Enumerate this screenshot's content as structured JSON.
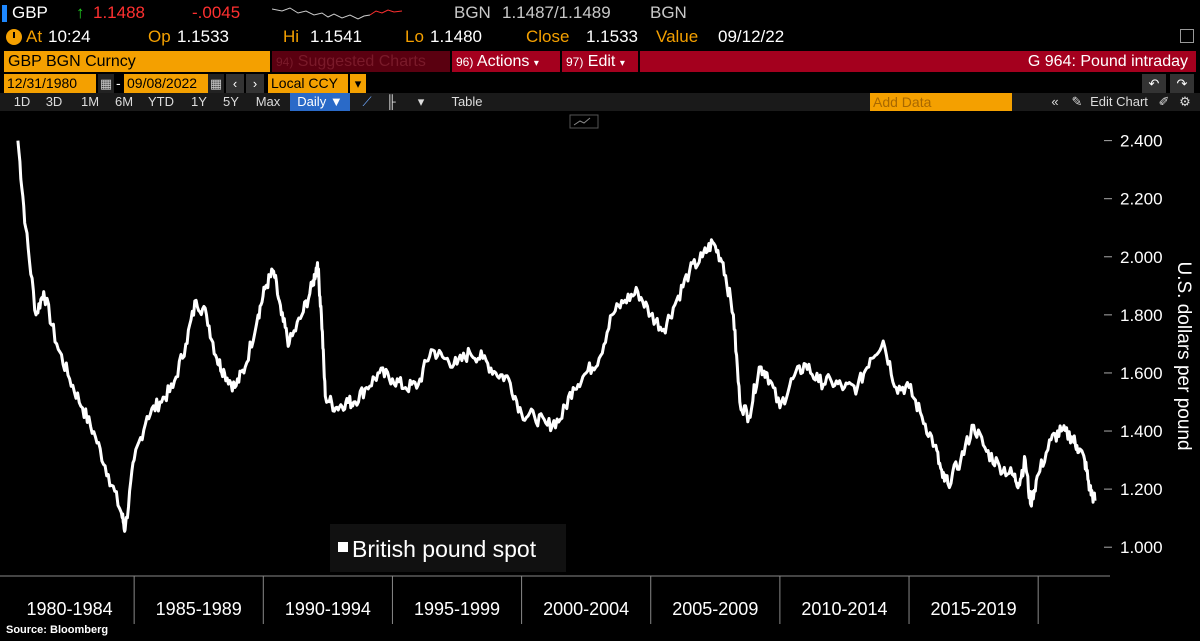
{
  "header": {
    "ticker": "GBP",
    "arrow": "↑",
    "price": "1.1488",
    "change": "-.0045",
    "source_label": "BGN",
    "bid_ask": "1.1487/1.1489",
    "source_label2": "BGN"
  },
  "quote_row": {
    "at_label": "At",
    "time": "10:24",
    "open_label": "Op",
    "open": "1.1533",
    "high_label": "Hi",
    "high": "1.1541",
    "low_label": "Lo",
    "low": "1.1480",
    "close_label": "Close",
    "close": "1.1533",
    "value_label": "Value",
    "value_date": "09/12/22"
  },
  "command_bar": {
    "security": "GBP BGN Curncy",
    "suggested_num": "94)",
    "suggested_label": "Suggested Charts",
    "actions_num": "96)",
    "actions_label": "Actions",
    "edit_num": "97)",
    "edit_label": "Edit",
    "chart_title": "G 964: Pound intraday"
  },
  "date_row": {
    "start_date": "12/31/1980",
    "end_date": "09/08/2022",
    "currency": "Local CCY"
  },
  "toolbar": {
    "periods": [
      "1D",
      "3D",
      "1M",
      "6M",
      "YTD",
      "1Y",
      "5Y",
      "Max"
    ],
    "frequency": "Daily",
    "table_label": "Table",
    "add_data_placeholder": "Add Data",
    "edit_chart_label": "Edit Chart"
  },
  "colors": {
    "background": "#000000",
    "line": "#ffffff",
    "bloomberg_orange": "#f4a000",
    "command_red": "#a4001e",
    "price_red": "#ff3030",
    "up_green": "#22d422"
  },
  "chart_data": {
    "type": "line",
    "title": "",
    "xlabel": "",
    "ylabel": "U.S. dollars per pound",
    "ylim": [
      0.98,
      2.44
    ],
    "y_ticks": [
      "2.400",
      "2.200",
      "2.000",
      "1.800",
      "1.600",
      "1.400",
      "1.200",
      "1.000"
    ],
    "x_range": [
      1980.5,
      2022.7
    ],
    "x_period_labels": [
      "1980-1984",
      "1985-1989",
      "1990-1994",
      "1995-1999",
      "2000-2004",
      "2005-2009",
      "2010-2014",
      "2015-2019"
    ],
    "grid": false,
    "legend_position": "bottom-center",
    "series": [
      {
        "name": "British pound spot",
        "x": [
          1981.0,
          1981.3,
          1981.7,
          1982.0,
          1982.5,
          1983.0,
          1983.5,
          1984.0,
          1984.5,
          1985.0,
          1985.15,
          1985.5,
          1986.0,
          1986.5,
          1987.0,
          1987.5,
          1987.9,
          1988.3,
          1988.7,
          1989.0,
          1989.4,
          1989.8,
          1990.3,
          1990.6,
          1990.9,
          1991.2,
          1991.5,
          1992.0,
          1992.4,
          1992.6,
          1992.75,
          1992.9,
          1993.3,
          1993.7,
          1994.0,
          1994.5,
          1995.0,
          1995.5,
          1996.0,
          1996.5,
          1997.0,
          1997.5,
          1998.0,
          1998.5,
          1999.0,
          1999.5,
          2000.0,
          2000.5,
          2001.0,
          2001.5,
          2002.0,
          2002.5,
          2003.0,
          2003.5,
          2004.0,
          2004.5,
          2005.0,
          2005.5,
          2006.0,
          2006.5,
          2007.0,
          2007.5,
          2007.9,
          2008.3,
          2008.7,
          2008.95,
          2009.3,
          2009.7,
          2010.0,
          2010.5,
          2011.0,
          2011.5,
          2012.0,
          2012.5,
          2013.0,
          2013.5,
          2014.0,
          2014.5,
          2015.0,
          2015.5,
          2016.0,
          2016.5,
          2016.8,
          2017.0,
          2017.5,
          2018.0,
          2018.5,
          2019.0,
          2019.5,
          2019.75,
          2020.0,
          2020.2,
          2020.5,
          2021.0,
          2021.4,
          2021.8,
          2022.0,
          2022.3,
          2022.5,
          2022.7
        ],
        "y": [
          2.4,
          2.1,
          1.8,
          1.88,
          1.7,
          1.58,
          1.48,
          1.38,
          1.25,
          1.12,
          1.06,
          1.3,
          1.45,
          1.5,
          1.55,
          1.7,
          1.85,
          1.8,
          1.65,
          1.6,
          1.55,
          1.62,
          1.8,
          1.9,
          1.95,
          1.8,
          1.7,
          1.8,
          1.9,
          1.98,
          1.8,
          1.52,
          1.48,
          1.5,
          1.5,
          1.55,
          1.6,
          1.58,
          1.55,
          1.56,
          1.68,
          1.65,
          1.63,
          1.67,
          1.65,
          1.6,
          1.58,
          1.46,
          1.45,
          1.42,
          1.44,
          1.55,
          1.6,
          1.65,
          1.8,
          1.85,
          1.88,
          1.8,
          1.75,
          1.85,
          1.95,
          2.0,
          2.05,
          1.98,
          1.8,
          1.5,
          1.45,
          1.62,
          1.6,
          1.48,
          1.58,
          1.63,
          1.57,
          1.57,
          1.55,
          1.55,
          1.65,
          1.71,
          1.55,
          1.55,
          1.45,
          1.35,
          1.24,
          1.22,
          1.3,
          1.42,
          1.33,
          1.28,
          1.25,
          1.22,
          1.3,
          1.15,
          1.25,
          1.37,
          1.4,
          1.38,
          1.35,
          1.3,
          1.2,
          1.16
        ]
      }
    ],
    "source": "Source: Bloomberg"
  }
}
